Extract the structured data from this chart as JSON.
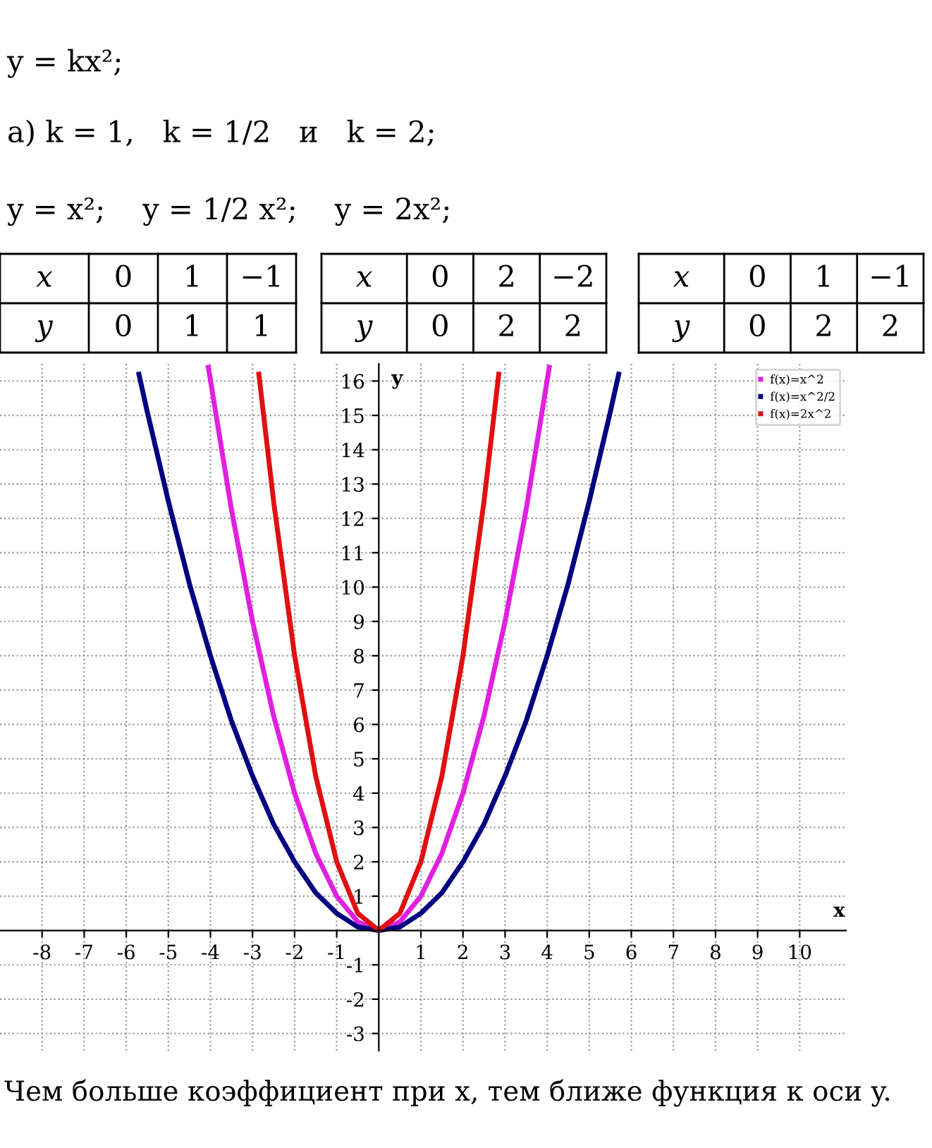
{
  "chart_data": {
    "type": "line",
    "xlabel": "x",
    "ylabel": "y",
    "annotations": [
      "y = kx²;",
      "а) k = 1,   k = 1/2   и   k = 2;",
      "y = x²;    y = 1/2 x²;    y = 2x²;",
      "x",
      "0",
      "1",
      "−1",
      "y",
      "0",
      "1",
      "1",
      "x",
      "0",
      "2",
      "−2",
      "y",
      "0",
      "2",
      "2",
      "x",
      "0",
      "1",
      "−1",
      "y",
      "0",
      "2",
      "2",
      "Чем больше коэффициент при x, тем ближе функция к оси y."
    ],
    "series": [
      {
        "name": "f(x)=x^2",
        "color": "#e020e0",
        "x": [
          -4.05,
          -3.5,
          -3,
          -2.5,
          -2,
          -1.5,
          -1,
          -0.5,
          0,
          0.5,
          1,
          1.5,
          2,
          2.5,
          3,
          3.5,
          4.05
        ],
        "values": [
          16.4,
          12.25,
          9,
          6.25,
          4,
          2.25,
          1,
          0.25,
          0,
          0.25,
          1,
          2.25,
          4,
          6.25,
          9,
          12.25,
          16.4
        ]
      },
      {
        "name": "f(x)=x^2/2",
        "color": "#000080",
        "x": [
          -5.7,
          -5.5,
          -5,
          -4.5,
          -4,
          -3.5,
          -3,
          -2.5,
          -2,
          -1.5,
          -1,
          -0.5,
          0,
          0.5,
          1,
          1.5,
          2,
          2.5,
          3,
          3.5,
          4,
          4.5,
          5,
          5.5,
          5.7
        ],
        "values": [
          16.2,
          15.1,
          12.5,
          10.1,
          8,
          6.1,
          4.5,
          3.1,
          2,
          1.1,
          0.5,
          0.1,
          0,
          0.1,
          0.5,
          1.1,
          2,
          3.1,
          4.5,
          6.1,
          8,
          10.1,
          12.5,
          15.1,
          16.2
        ]
      },
      {
        "name": "f(x)=2x^2",
        "color": "#e01010",
        "x": [
          -2.85,
          -2.5,
          -2,
          -1.5,
          -1,
          -0.5,
          0,
          0.5,
          1,
          1.5,
          2,
          2.5,
          2.85
        ],
        "values": [
          16.2,
          12.5,
          8,
          4.5,
          2,
          0.5,
          0,
          0.5,
          2,
          4.5,
          8,
          12.5,
          16.2
        ]
      }
    ],
    "xlim": [
      -9,
      11.1
    ],
    "ylim": [
      -3.5,
      16.5
    ],
    "xticks": [
      -8,
      -7,
      -6,
      -5,
      -4,
      -3,
      -2,
      -1,
      1,
      2,
      3,
      4,
      5,
      6,
      7,
      8,
      9,
      10
    ],
    "yticks": [
      -3,
      -2,
      -1,
      1,
      2,
      3,
      4,
      5,
      6,
      7,
      8,
      9,
      10,
      11,
      12,
      13,
      14,
      15,
      16
    ],
    "grid": true,
    "legend": "top right",
    "marker": "none",
    "line_style": "solid"
  }
}
